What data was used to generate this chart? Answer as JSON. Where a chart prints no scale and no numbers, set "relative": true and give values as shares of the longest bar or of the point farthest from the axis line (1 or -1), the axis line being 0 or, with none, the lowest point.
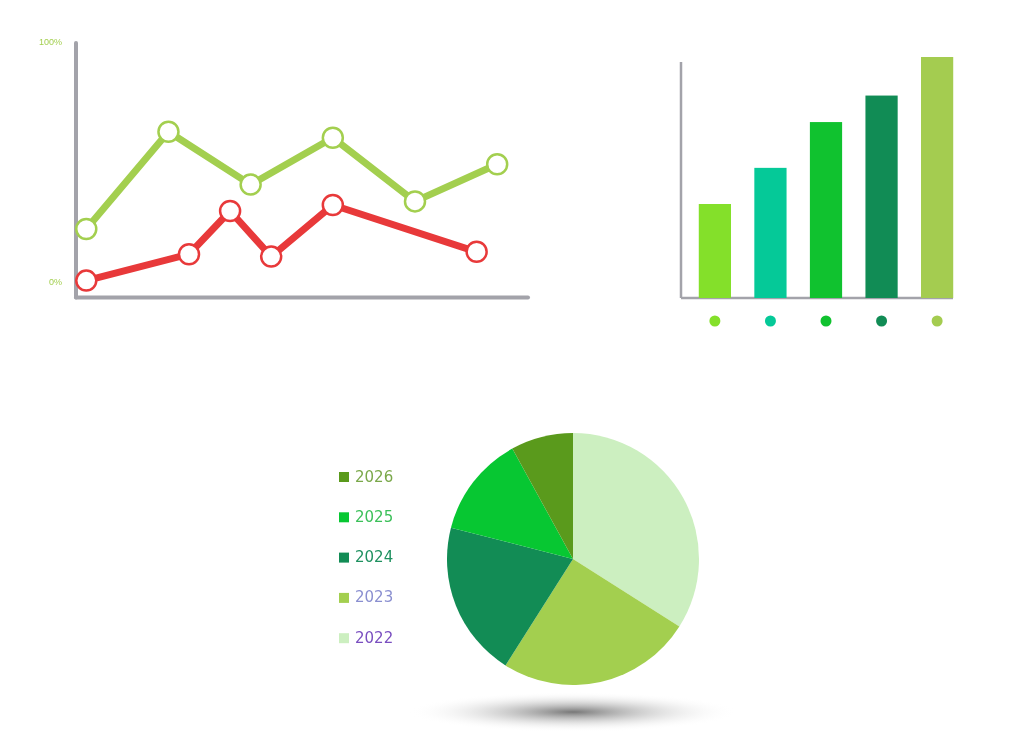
{
  "chart_data": [
    {
      "type": "line",
      "categories": [
        null,
        null,
        null,
        null,
        null,
        null,
        null,
        null,
        null,
        null,
        null,
        null,
        null,
        null,
        null,
        null,
        null,
        null,
        null,
        null,
        null,
        null
      ],
      "ylim": [
        -6,
        100
      ],
      "yticks": [
        {
          "value": 0,
          "label": "0%"
        },
        {
          "value": 100,
          "label": "100%"
        }
      ],
      "tick_labels": "y",
      "marker": "circle",
      "line_style": "solid",
      "series": [
        {
          "color": "#a3cf4f",
          "values": [
            22.5,
            null,
            null,
            null,
            63,
            null,
            null,
            null,
            41,
            null,
            null,
            null,
            60.5,
            null,
            null,
            null,
            34,
            null,
            null,
            null,
            49.5,
            null
          ]
        },
        {
          "color": "#e8393a",
          "values": [
            1,
            null,
            null,
            null,
            null,
            12,
            null,
            30,
            null,
            11,
            null,
            null,
            32.5,
            null,
            null,
            null,
            null,
            null,
            null,
            13,
            null,
            null
          ]
        }
      ]
    },
    {
      "type": "bar",
      "relative": true,
      "categories": [
        null,
        null,
        null,
        null,
        null
      ],
      "values": [
        0.39,
        0.54,
        0.73,
        0.84,
        1
      ],
      "colors": [
        "#84e02a",
        "#05c998",
        "#10c22f",
        "#118c55",
        "#a4cc50"
      ]
    },
    {
      "type": "pie",
      "categories": [
        "2022",
        "2023",
        "2024",
        "2025",
        "2026"
      ],
      "values": [
        34,
        25,
        20,
        13,
        8
      ],
      "colors": [
        "#ccefc0",
        "#a3cf4f",
        "#128c55",
        "#07c732",
        "#5a9a1c"
      ],
      "legend": "left"
    }
  ]
}
